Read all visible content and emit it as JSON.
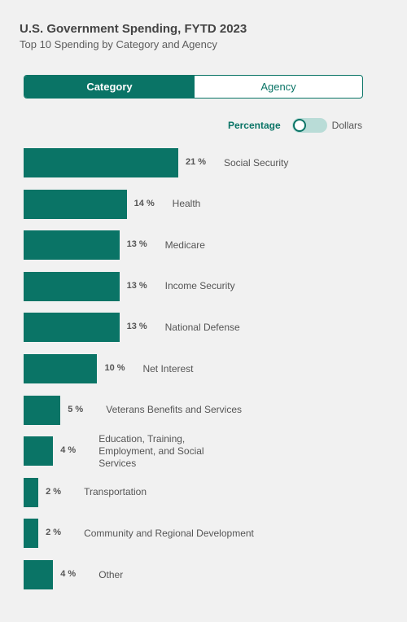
{
  "header": {
    "title": "U.S. Government Spending, FYTD 2023",
    "subtitle": "Top 10 Spending by Category and Agency"
  },
  "tabs": [
    {
      "label": "Category",
      "active": true
    },
    {
      "label": "Agency",
      "active": false
    }
  ],
  "toggle": {
    "left_label": "Percentage",
    "right_label": "Dollars",
    "selected": "Percentage"
  },
  "colors": {
    "accent": "#0a7466",
    "toggle_track": "#b9dcd7",
    "background": "#f1f1f1"
  },
  "chart_data": {
    "type": "bar",
    "orientation": "horizontal",
    "unit": "%",
    "categories": [
      "Social Security",
      "Health",
      "Medicare",
      "Income Security",
      "National Defense",
      "Net Interest",
      "Veterans Benefits and Services",
      "Education, Training, Employment, and Social Services",
      "Transportation",
      "Community and Regional Development",
      "Other"
    ],
    "values": [
      21,
      14,
      13,
      13,
      13,
      10,
      5,
      4,
      2,
      2,
      4
    ],
    "value_labels": [
      "21 %",
      "14 %",
      "13 %",
      "13 %",
      "13 %",
      "10 %",
      "5 %",
      "4 %",
      "2 %",
      "2 %",
      "4 %"
    ],
    "xlim": [
      0,
      21
    ],
    "grid": false,
    "legend": "none"
  }
}
